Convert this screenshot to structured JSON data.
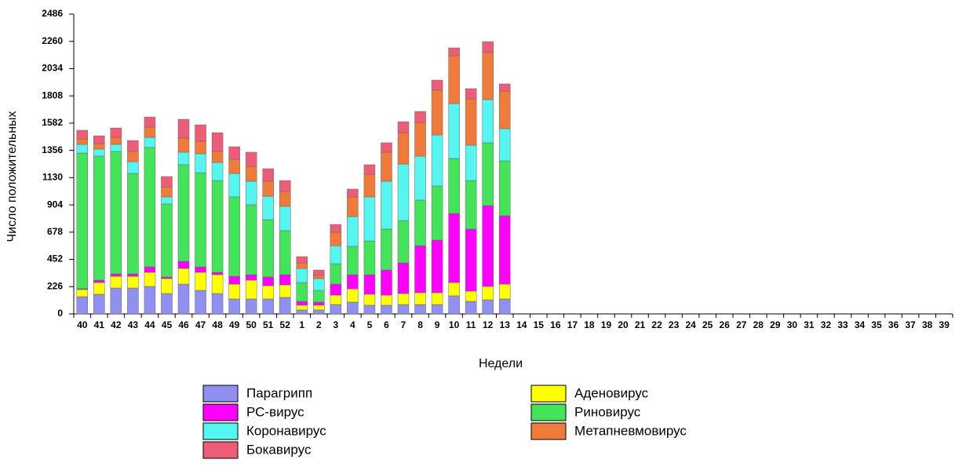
{
  "chart_data": {
    "type": "stacked_bar",
    "y_label": "Число положительных",
    "x_label": "Недели",
    "categories": [
      "40",
      "41",
      "42",
      "43",
      "44",
      "45",
      "46",
      "47",
      "48",
      "49",
      "50",
      "51",
      "52",
      "1",
      "2",
      "3",
      "4",
      "5",
      "6",
      "7",
      "8",
      "9",
      "10",
      "11",
      "12",
      "13",
      "14",
      "15",
      "16",
      "17",
      "18",
      "19",
      "20",
      "21",
      "22",
      "23",
      "24",
      "25",
      "26",
      "27",
      "28",
      "29",
      "30",
      "31",
      "32",
      "33",
      "34",
      "35",
      "36",
      "37",
      "38",
      "39"
    ],
    "ylim": [
      0,
      2486
    ],
    "yticks": [
      0,
      226,
      452,
      678,
      904,
      1130,
      1356,
      1582,
      1808,
      2034,
      2260,
      2486
    ],
    "series": [
      {
        "name": "Парагрипп",
        "color": "#9090f0",
        "values": [
          143,
          163,
          215,
          215,
          228,
          169,
          247,
          195,
          169,
          124,
          124,
          124,
          137,
          33,
          33,
          78,
          98,
          72,
          72,
          78,
          78,
          78,
          150,
          104,
          117,
          124,
          null,
          null,
          null,
          null,
          null,
          null,
          null,
          null,
          null,
          null,
          null,
          null,
          null,
          null,
          null,
          null,
          null,
          null,
          null,
          null,
          null,
          null,
          null,
          null,
          null,
          null
        ]
      },
      {
        "name": "Аденовирус",
        "color": "#ffff00",
        "values": [
          59,
          97,
          97,
          97,
          117,
          124,
          130,
          150,
          156,
          123,
          156,
          110,
          104,
          39,
          39,
          78,
          110,
          91,
          84,
          91,
          98,
          98,
          110,
          85,
          111,
          123,
          null,
          null,
          null,
          null,
          null,
          null,
          null,
          null,
          null,
          null,
          null,
          null,
          null,
          null,
          null,
          null,
          null,
          null,
          null,
          null,
          null,
          null,
          null,
          null,
          null,
          null
        ]
      },
      {
        "name": "РС-вирус",
        "color": "#ff00ff",
        "values": [
          7,
          20,
          20,
          20,
          45,
          13,
          59,
          45,
          20,
          65,
          45,
          72,
          84,
          32,
          26,
          91,
          117,
          162,
          208,
          254,
          390,
          436,
          573,
          514,
          670,
          567,
          null,
          null,
          null,
          null,
          null,
          null,
          null,
          null,
          null,
          null,
          null,
          null,
          null,
          null,
          null,
          null,
          null,
          null,
          null,
          null,
          null,
          null,
          null,
          null,
          null,
          null
        ]
      },
      {
        "name": "Риновирус",
        "color": "#44e45a",
        "values": [
          1125,
          1028,
          1015,
          833,
          990,
          605,
          801,
          781,
          761,
          658,
          580,
          475,
          365,
          156,
          97,
          169,
          235,
          280,
          339,
          351,
          378,
          449,
          456,
          403,
          521,
          455,
          null,
          null,
          null,
          null,
          null,
          null,
          null,
          null,
          null,
          null,
          null,
          null,
          null,
          null,
          null,
          null,
          null,
          null,
          null,
          null,
          null,
          null,
          null,
          null,
          null,
          null
        ]
      },
      {
        "name": "Коронавирус",
        "color": "#55f5f0",
        "values": [
          72,
          59,
          59,
          97,
          84,
          59,
          104,
          157,
          150,
          195,
          195,
          195,
          202,
          117,
          98,
          150,
          247,
          365,
          397,
          469,
          364,
          423,
          455,
          293,
          358,
          267,
          null,
          null,
          null,
          null,
          null,
          null,
          null,
          null,
          null,
          null,
          null,
          null,
          null,
          null,
          null,
          null,
          null,
          null,
          null,
          null,
          null,
          null,
          null,
          null,
          null,
          null
        ]
      },
      {
        "name": "Метапневмовирус",
        "color": "#f07a3a",
        "values": [
          45,
          45,
          58,
          85,
          85,
          84,
          117,
          104,
          91,
          117,
          123,
          124,
          123,
          46,
          26,
          111,
          163,
          188,
          241,
          260,
          280,
          371,
          397,
          384,
          390,
          312,
          null,
          null,
          null,
          null,
          null,
          null,
          null,
          null,
          null,
          null,
          null,
          null,
          null,
          null,
          null,
          null,
          null,
          null,
          null,
          null,
          null,
          null,
          null,
          null,
          null,
          null
        ]
      },
      {
        "name": "Бокавирус",
        "color": "#ee5d78",
        "values": [
          72,
          65,
          78,
          91,
          84,
          85,
          156,
          136,
          156,
          104,
          118,
          104,
          91,
          52,
          45,
          65,
          65,
          79,
          78,
          91,
          91,
          84,
          65,
          85,
          91,
          59,
          null,
          null,
          null,
          null,
          null,
          null,
          null,
          null,
          null,
          null,
          null,
          null,
          null,
          null,
          null,
          null,
          null,
          null,
          null,
          null,
          null,
          null,
          null,
          null,
          null,
          null
        ]
      }
    ]
  }
}
